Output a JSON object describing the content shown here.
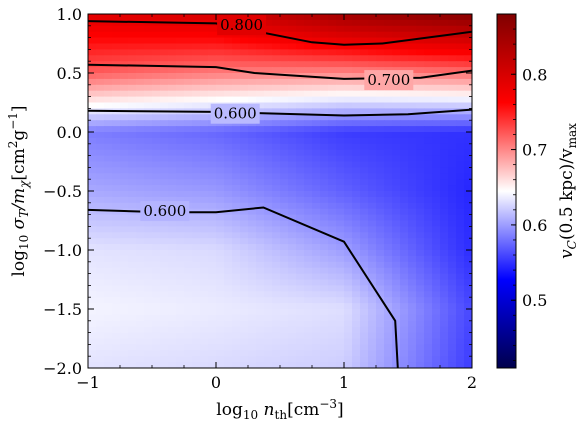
{
  "chart_data": {
    "type": "heatmap",
    "title": "",
    "xlabel": {
      "main": "log",
      "sub": "10",
      "tail": " n",
      "tailsub": "th",
      "unit": "[cm",
      "unitsup": "−3",
      "unitend": "]"
    },
    "ylabel": {
      "main": "log",
      "sub": "10",
      "sym": " σ",
      "symsub": "T",
      "sym2": "/m",
      "sym2sub": "χ",
      "unit": "[cm",
      "unitsup": "2",
      "unit2": "g",
      "unit2sup": "−1",
      "unitend": "]"
    },
    "colorbar_label": {
      "v": "v",
      "vsub": "C",
      "mid": "(0.5 kpc)/v",
      "vmaxsub": "max"
    },
    "xlim": [
      -1,
      2
    ],
    "ylim": [
      -2,
      1
    ],
    "x_ticks": [
      -1,
      0,
      1,
      2
    ],
    "x_tick_labels": [
      "−1",
      "0",
      "1",
      "2"
    ],
    "y_ticks": [
      1.0,
      0.5,
      0.0,
      -0.5,
      -1.0,
      -1.5,
      -2.0
    ],
    "y_tick_labels": [
      "1.0",
      "0.5",
      "0.0",
      "−0.5",
      "−1.0",
      "−1.5",
      "−2.0"
    ],
    "colorbar": {
      "range": [
        0.41,
        0.88
      ],
      "ticks": [
        0.5,
        0.6,
        0.7,
        0.8
      ],
      "tick_labels": [
        "0.5",
        "0.6",
        "0.7",
        "0.8"
      ],
      "colormap": "seismic",
      "colors": {
        "low": "#00004c",
        "blue": "#0000ff",
        "mid": "#ffffff",
        "red": "#ff0000",
        "high": "#800000"
      }
    },
    "grid_x": [
      -1,
      0,
      1,
      2
    ],
    "grid_y": [
      -2,
      -1.5,
      -1,
      -0.5,
      0,
      0.5,
      1
    ],
    "z": [
      [
        0.632,
        0.628,
        0.622,
        0.555
      ],
      [
        0.64,
        0.636,
        0.63,
        0.56
      ],
      [
        0.632,
        0.628,
        0.6,
        0.548
      ],
      [
        0.605,
        0.598,
        0.572,
        0.545
      ],
      [
        0.585,
        0.575,
        0.555,
        0.55
      ],
      [
        0.72,
        0.705,
        0.7,
        0.71
      ],
      [
        0.79,
        0.8,
        0.85,
        0.875
      ]
    ],
    "contours": [
      {
        "level": 0.8,
        "label": "0.800",
        "label_at": [
          0.2,
          0.905
        ],
        "points": [
          [
            -1,
            0.94
          ],
          [
            0,
            0.92
          ],
          [
            0.75,
            0.76
          ],
          [
            1,
            0.74
          ],
          [
            1.3,
            0.75
          ],
          [
            2,
            0.85
          ]
        ]
      },
      {
        "level": 0.7,
        "label": "0.700",
        "label_at": [
          1.35,
          0.44
        ],
        "points": [
          [
            -1,
            0.57
          ],
          [
            0,
            0.55
          ],
          [
            0.3,
            0.5
          ],
          [
            1,
            0.45
          ],
          [
            1.6,
            0.46
          ],
          [
            2,
            0.52
          ]
        ]
      },
      {
        "level": 0.6,
        "label": "0.600",
        "label_at": [
          0.15,
          0.155
        ],
        "points": [
          [
            -1,
            0.18
          ],
          [
            0,
            0.17
          ],
          [
            1,
            0.14
          ],
          [
            1.5,
            0.15
          ],
          [
            2,
            0.19
          ]
        ]
      },
      {
        "level": 0.6,
        "label": "0.600",
        "label_at": [
          -0.4,
          -0.67
        ],
        "points": [
          [
            -1,
            -0.66
          ],
          [
            -0.4,
            -0.68
          ],
          [
            0,
            -0.68
          ],
          [
            0.37,
            -0.64
          ],
          [
            1,
            -0.93
          ],
          [
            1.4,
            -1.6
          ],
          [
            1.42,
            -2
          ]
        ]
      }
    ]
  }
}
